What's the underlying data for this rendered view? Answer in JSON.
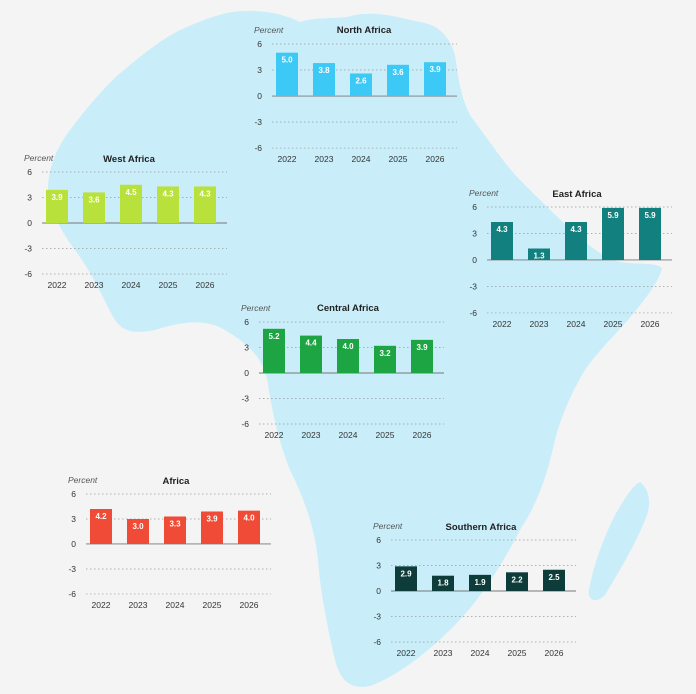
{
  "colors": {
    "background": "#f4f4f4",
    "map_fill": "#c9eefa",
    "axis_text": "#333333",
    "gridline": "#9a9a9a"
  },
  "common": {
    "y_axis_unit": "Percent",
    "yticks": [
      6,
      3,
      0,
      -3,
      -6
    ],
    "ylim": [
      -6,
      6
    ],
    "categories": [
      "2022",
      "2023",
      "2024",
      "2025",
      "2026"
    ]
  },
  "chart_data": [
    {
      "id": "north",
      "type": "bar",
      "title": "North Africa",
      "ylabel": "Percent",
      "categories": [
        "2022",
        "2023",
        "2024",
        "2025",
        "2026"
      ],
      "values": [
        5.0,
        3.8,
        2.6,
        3.6,
        3.9
      ],
      "labels": [
        "5.0",
        "3.8",
        "2.6",
        "3.6",
        "3.9"
      ],
      "color": "#3cc9f5",
      "ylim": [
        -6,
        6
      ],
      "yticks": [
        6,
        3,
        0,
        -3,
        -6
      ]
    },
    {
      "id": "west",
      "type": "bar",
      "title": "West Africa",
      "ylabel": "Percent",
      "categories": [
        "2022",
        "2023",
        "2024",
        "2025",
        "2026"
      ],
      "values": [
        3.9,
        3.6,
        4.5,
        4.3,
        4.3
      ],
      "labels": [
        "3.9",
        "3.6",
        "4.5",
        "4.3",
        "4.3"
      ],
      "color": "#b9e13c",
      "ylim": [
        -6,
        6
      ],
      "yticks": [
        6,
        3,
        0,
        -3,
        -6
      ]
    },
    {
      "id": "east",
      "type": "bar",
      "title": "East Africa",
      "ylabel": "Percent",
      "categories": [
        "2022",
        "2023",
        "2024",
        "2025",
        "2026"
      ],
      "values": [
        4.3,
        1.3,
        4.3,
        5.9,
        5.9
      ],
      "labels": [
        "4.3",
        "1.3",
        "4.3",
        "5.9",
        "5.9"
      ],
      "color": "#12807e",
      "ylim": [
        -6,
        6
      ],
      "yticks": [
        6,
        3,
        0,
        -3,
        -6
      ]
    },
    {
      "id": "central",
      "type": "bar",
      "title": "Central Africa",
      "ylabel": "Percent",
      "categories": [
        "2022",
        "2023",
        "2024",
        "2025",
        "2026"
      ],
      "values": [
        5.2,
        4.4,
        4.0,
        3.2,
        3.9
      ],
      "labels": [
        "5.2",
        "4.4",
        "4.0",
        "3.2",
        "3.9"
      ],
      "color": "#1ea543",
      "ylim": [
        -6,
        6
      ],
      "yticks": [
        6,
        3,
        0,
        -3,
        -6
      ]
    },
    {
      "id": "africa",
      "type": "bar",
      "title": "Africa",
      "ylabel": "Percent",
      "categories": [
        "2022",
        "2023",
        "2024",
        "2025",
        "2026"
      ],
      "values": [
        4.2,
        3.0,
        3.3,
        3.9,
        4.0
      ],
      "labels": [
        "4.2",
        "3.0",
        "3.3",
        "3.9",
        "4.0"
      ],
      "color": "#f04b37",
      "ylim": [
        -6,
        6
      ],
      "yticks": [
        6,
        3,
        0,
        -3,
        -6
      ]
    },
    {
      "id": "southern",
      "type": "bar",
      "title": "Southern Africa",
      "ylabel": "Percent",
      "categories": [
        "2022",
        "2023",
        "2024",
        "2025",
        "2026"
      ],
      "values": [
        2.9,
        1.8,
        1.9,
        2.2,
        2.5
      ],
      "labels": [
        "2.9",
        "1.8",
        "1.9",
        "2.2",
        "2.5"
      ],
      "color": "#0e3c3a",
      "ylim": [
        -6,
        6
      ],
      "yticks": [
        6,
        3,
        0,
        -3,
        -6
      ]
    }
  ]
}
